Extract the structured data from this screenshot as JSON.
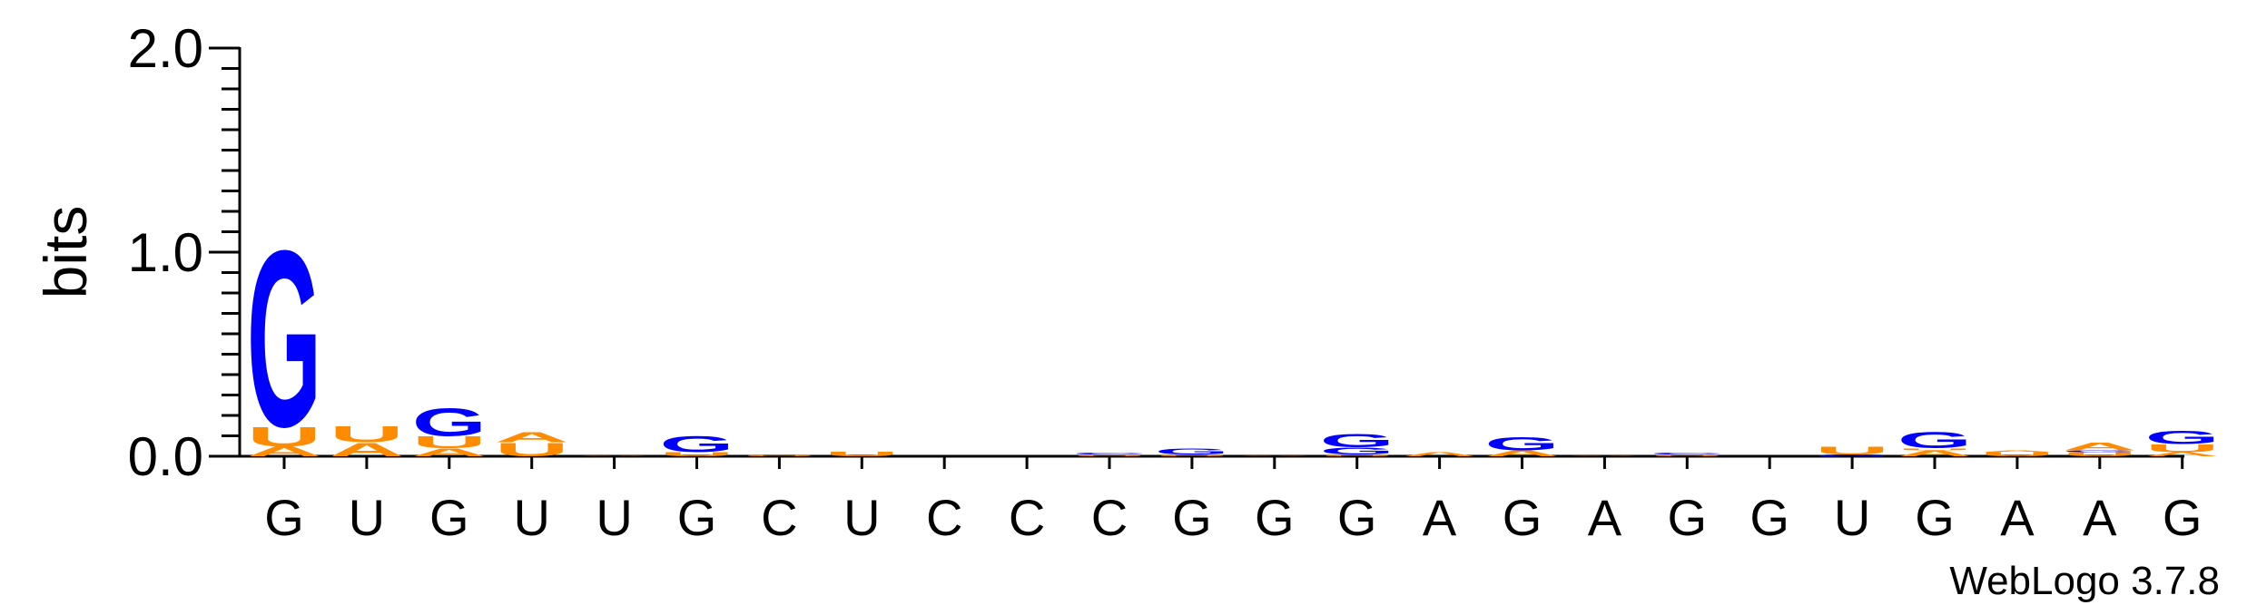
{
  "chart_data": {
    "type": "sequence-logo",
    "ylabel": "bits",
    "ylim": [
      0,
      2.0
    ],
    "yticks": [
      "0.0",
      "1.0",
      "2.0"
    ],
    "consensus": [
      "G",
      "U",
      "G",
      "U",
      "U",
      "G",
      "C",
      "U",
      "C",
      "C",
      "C",
      "G",
      "G",
      "G",
      "A",
      "G",
      "A",
      "G",
      "G",
      "U",
      "G",
      "A",
      "A",
      "G"
    ],
    "footer": "WebLogo 3.7.8",
    "colors": {
      "G": "#0000ff",
      "U": "#ff8c00",
      "A": "#ff8c00",
      "C": "#0000ff"
    },
    "stacks": [
      [
        {
          "b": "A",
          "v": 0.05
        },
        {
          "b": "U",
          "v": 0.1
        },
        {
          "b": "G",
          "v": 0.9
        }
      ],
      [
        {
          "b": "A",
          "v": 0.07
        },
        {
          "b": "U",
          "v": 0.08
        }
      ],
      [
        {
          "b": "A",
          "v": 0.04
        },
        {
          "b": "U",
          "v": 0.06
        },
        {
          "b": "G",
          "v": 0.14
        }
      ],
      [
        {
          "b": "U",
          "v": 0.07
        },
        {
          "b": "A",
          "v": 0.05
        }
      ],
      [
        {
          "b": "A",
          "v": 0.004
        }
      ],
      [
        {
          "b": "U",
          "v": 0.02
        },
        {
          "b": "G",
          "v": 0.08
        }
      ],
      [
        {
          "b": "U",
          "v": 0.01
        }
      ],
      [
        {
          "b": "U",
          "v": 0.025
        }
      ],
      [],
      [],
      [
        {
          "b": "U",
          "v": 0.01
        },
        {
          "b": "C",
          "v": 0.008
        }
      ],
      [
        {
          "b": "U",
          "v": 0.008
        },
        {
          "b": "G",
          "v": 0.03
        }
      ],
      [
        {
          "b": "A",
          "v": 0.004
        }
      ],
      [
        {
          "b": "U",
          "v": 0.01
        },
        {
          "b": "G",
          "v": 0.035
        },
        {
          "b": "G",
          "v": 0.07
        }
      ],
      [
        {
          "b": "A",
          "v": 0.02
        }
      ],
      [
        {
          "b": "A",
          "v": 0.03
        },
        {
          "b": "G",
          "v": 0.07
        }
      ],
      [
        {
          "b": "A",
          "v": 0.004
        }
      ],
      [
        {
          "b": "U",
          "v": 0.01
        },
        {
          "b": "C",
          "v": 0.008
        }
      ],
      [],
      [
        {
          "b": "G",
          "v": 0.01
        },
        {
          "b": "U",
          "v": 0.04
        }
      ],
      [
        {
          "b": "A",
          "v": 0.03
        },
        {
          "b": "U",
          "v": 0.01
        },
        {
          "b": "G",
          "v": 0.08
        }
      ],
      [
        {
          "b": "U",
          "v": 0.02
        },
        {
          "b": "A",
          "v": 0.01
        }
      ],
      [
        {
          "b": "U",
          "v": 0.02
        },
        {
          "b": "G",
          "v": 0.01
        },
        {
          "b": "A",
          "v": 0.04
        }
      ],
      [
        {
          "b": "A",
          "v": 0.02
        },
        {
          "b": "U",
          "v": 0.04
        },
        {
          "b": "G",
          "v": 0.07
        }
      ]
    ]
  }
}
